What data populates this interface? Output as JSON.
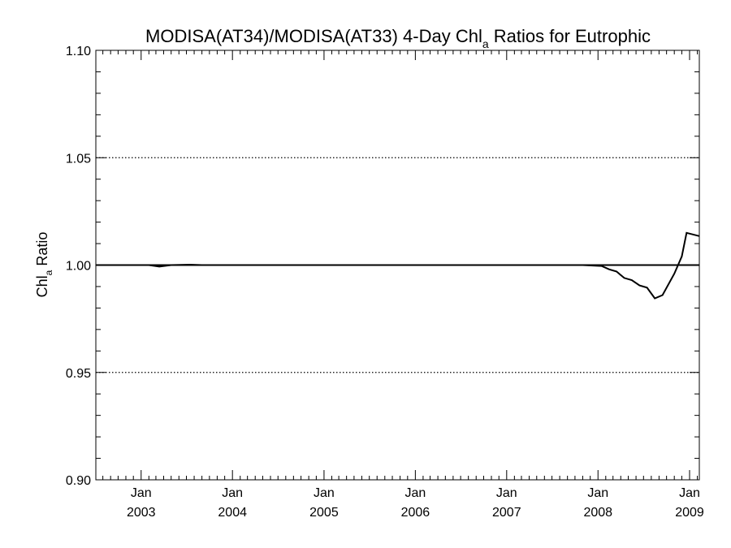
{
  "chart_data": {
    "type": "line",
    "title": "MODISA(AT34)/MODISA(AT33) 4-Day Chl",
    "title_subscript": "a",
    "title_suffix": " Ratios for Eutrophic",
    "ylabel": "Chl",
    "ylabel_subscript": "a",
    "ylabel_suffix": " Ratio",
    "xlim": [
      "2002-07-04",
      "2009-02-09"
    ],
    "ylim": [
      0.9,
      1.1
    ],
    "yticks": [
      {
        "value": 0.9,
        "label": "0.90"
      },
      {
        "value": 0.95,
        "label": "0.95"
      },
      {
        "value": 1.0,
        "label": "1.00"
      },
      {
        "value": 1.05,
        "label": "1.05"
      },
      {
        "value": 1.1,
        "label": "1.10"
      }
    ],
    "xticks": [
      {
        "date": "2003-01-01",
        "month": "Jan",
        "year": "2003"
      },
      {
        "date": "2004-01-01",
        "month": "Jan",
        "year": "2004"
      },
      {
        "date": "2005-01-01",
        "month": "Jan",
        "year": "2005"
      },
      {
        "date": "2006-01-01",
        "month": "Jan",
        "year": "2006"
      },
      {
        "date": "2007-01-01",
        "month": "Jan",
        "year": "2007"
      },
      {
        "date": "2008-01-01",
        "month": "Jan",
        "year": "2008"
      },
      {
        "date": "2009-01-01",
        "month": "Jan",
        "year": "2009"
      }
    ],
    "gridlines": [
      0.95,
      1.05
    ],
    "reference_line": 1.0,
    "series": [
      {
        "points": [
          {
            "x": "2002-07-04",
            "y": 1.0
          },
          {
            "x": "2003-02-01",
            "y": 1.0
          },
          {
            "x": "2003-03-15",
            "y": 0.9993
          },
          {
            "x": "2003-05-01",
            "y": 1.0
          },
          {
            "x": "2003-07-15",
            "y": 1.0002
          },
          {
            "x": "2003-09-01",
            "y": 1.0
          },
          {
            "x": "2007-11-01",
            "y": 1.0
          },
          {
            "x": "2008-01-15",
            "y": 0.9996
          },
          {
            "x": "2008-02-15",
            "y": 0.998
          },
          {
            "x": "2008-03-15",
            "y": 0.997
          },
          {
            "x": "2008-04-15",
            "y": 0.994
          },
          {
            "x": "2008-05-15",
            "y": 0.993
          },
          {
            "x": "2008-06-15",
            "y": 0.9905
          },
          {
            "x": "2008-07-15",
            "y": 0.9895
          },
          {
            "x": "2008-08-15",
            "y": 0.9845
          },
          {
            "x": "2008-09-15",
            "y": 0.986
          },
          {
            "x": "2008-11-01",
            "y": 0.996
          },
          {
            "x": "2008-12-01",
            "y": 1.004
          },
          {
            "x": "2008-12-20",
            "y": 1.015
          },
          {
            "x": "2009-02-09",
            "y": 1.0135
          }
        ]
      }
    ],
    "grid": "dotted horizontal at 0.95 and 1.05",
    "legend": "none"
  }
}
